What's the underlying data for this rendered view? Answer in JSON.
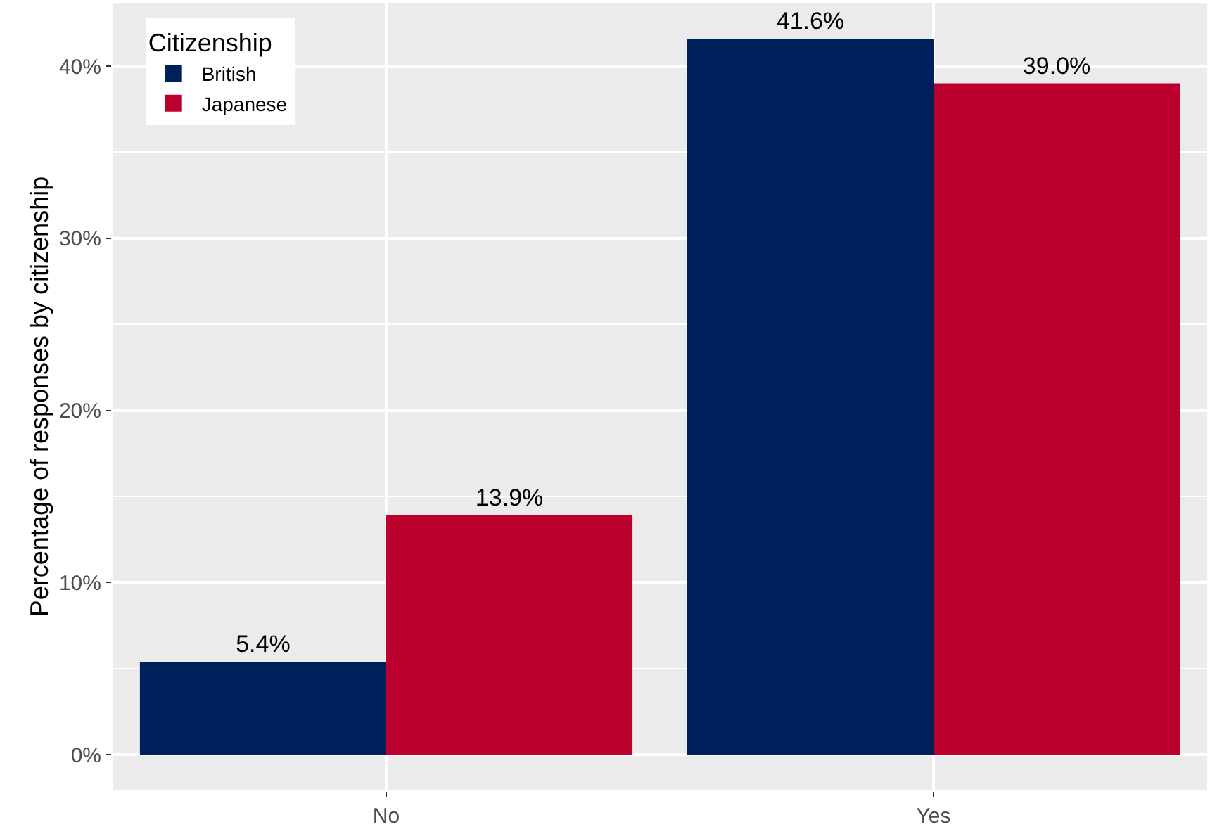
{
  "chart_data": {
    "type": "bar",
    "ylabel": "Percentage of responses by citizenship",
    "legend_title": "Citizenship",
    "categories": [
      "No",
      "Yes"
    ],
    "series": [
      {
        "name": "British",
        "color": "#00205b",
        "values": [
          5.4,
          41.6
        ],
        "value_labels": [
          "5.4%",
          "41.6%"
        ]
      },
      {
        "name": "Japanese",
        "color": "#bc002d",
        "values": [
          13.9,
          39.0
        ],
        "value_labels": [
          "13.9%",
          "39.0%"
        ]
      }
    ],
    "ylim": [
      -2.08,
      43.68
    ],
    "yticks": [
      {
        "value": 0,
        "label": "0%"
      },
      {
        "value": 10,
        "label": "10%"
      },
      {
        "value": 20,
        "label": "20%"
      },
      {
        "value": 30,
        "label": "30%"
      },
      {
        "value": 40,
        "label": "40%"
      }
    ],
    "grid": true,
    "legend": "top left"
  }
}
